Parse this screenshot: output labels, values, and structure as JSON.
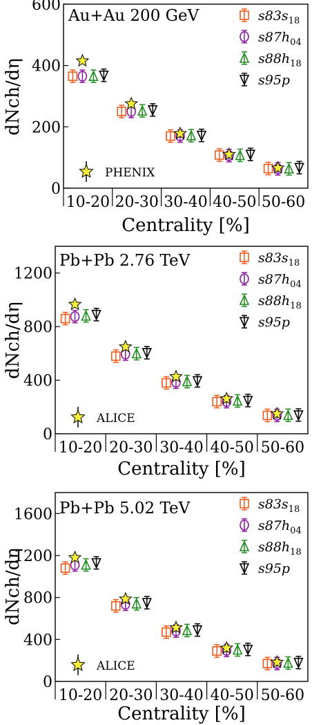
{
  "colors": {
    "s83s18": "#f05a1a",
    "s87h04": "#8b1aa0",
    "s88h18": "#1e8c1e",
    "s95p": "#000000",
    "exp": "#f5ee3a"
  },
  "chart_data": [
    {
      "type": "scatter",
      "title": "Au+Au 200 GeV",
      "xlabel": "Centrality [%]",
      "ylabel": "dNch/dη",
      "categories": [
        "10-20",
        "20-30",
        "30-40",
        "40-50",
        "50-60"
      ],
      "ylim": [
        0,
        600
      ],
      "yticks": [
        "0",
        "200",
        "400",
        "600"
      ],
      "experiment": {
        "name": "PHENIX",
        "values": [
          415,
          275,
          178,
          110,
          66
        ]
      },
      "series": [
        {
          "key": "s83s18",
          "name": "s83s18",
          "marker": "square",
          "values": [
            365,
            250,
            170,
            108,
            64
          ]
        },
        {
          "key": "s87h04",
          "name": "s87h04",
          "marker": "circle",
          "values": [
            365,
            250,
            170,
            106,
            63
          ]
        },
        {
          "key": "s88h18",
          "name": "s88h18",
          "marker": "triangle-up",
          "values": [
            365,
            252,
            171,
            107,
            63
          ]
        },
        {
          "key": "s95p",
          "name": "s95p",
          "marker": "triangle-down",
          "values": [
            368,
            255,
            172,
            110,
            67
          ]
        }
      ]
    },
    {
      "type": "scatter",
      "title": "Pb+Pb 2.76 TeV",
      "xlabel": "Centrality [%]",
      "ylabel": "dNch/dη",
      "categories": [
        "10-20",
        "20-30",
        "30-40",
        "40-50",
        "50-60"
      ],
      "ylim": [
        0,
        1400
      ],
      "yticks": [
        "0",
        "400",
        "800",
        "1200"
      ],
      "experiment": {
        "name": "ALICE",
        "values": [
          966,
          649,
          426,
          261,
          149
        ]
      },
      "series": [
        {
          "key": "s83s18",
          "name": "s83s18",
          "marker": "square",
          "values": [
            860,
            580,
            380,
            240,
            137
          ]
        },
        {
          "key": "s87h04",
          "name": "s87h04",
          "marker": "circle",
          "values": [
            875,
            595,
            385,
            240,
            137
          ]
        },
        {
          "key": "s88h18",
          "name": "s88h18",
          "marker": "triangle-up",
          "values": [
            880,
            598,
            390,
            245,
            138
          ]
        },
        {
          "key": "s95p",
          "name": "s95p",
          "marker": "triangle-down",
          "values": [
            890,
            605,
            395,
            248,
            140
          ]
        }
      ]
    },
    {
      "type": "scatter",
      "title": "Pb+Pb 5.02 TeV",
      "xlabel": "Centrality [%]",
      "ylabel": "dNch/dη",
      "categories": [
        "10-20",
        "20-30",
        "30-40",
        "40-50",
        "50-60"
      ],
      "ylim": [
        0,
        1800
      ],
      "yticks": [
        "0",
        "400",
        "800",
        "1200",
        "1600"
      ],
      "experiment": {
        "name": "ALICE",
        "values": [
          1180,
          785,
          512,
          318,
          183
        ]
      },
      "series": [
        {
          "key": "s83s18",
          "name": "s83s18",
          "marker": "square",
          "values": [
            1080,
            720,
            470,
            290,
            170
          ]
        },
        {
          "key": "s87h04",
          "name": "s87h04",
          "marker": "circle",
          "values": [
            1110,
            735,
            480,
            295,
            170
          ]
        },
        {
          "key": "s88h18",
          "name": "s88h18",
          "marker": "triangle-up",
          "values": [
            1110,
            740,
            485,
            300,
            175
          ]
        },
        {
          "key": "s95p",
          "name": "s95p",
          "marker": "triangle-down",
          "values": [
            1130,
            750,
            490,
            305,
            180
          ]
        }
      ]
    }
  ]
}
